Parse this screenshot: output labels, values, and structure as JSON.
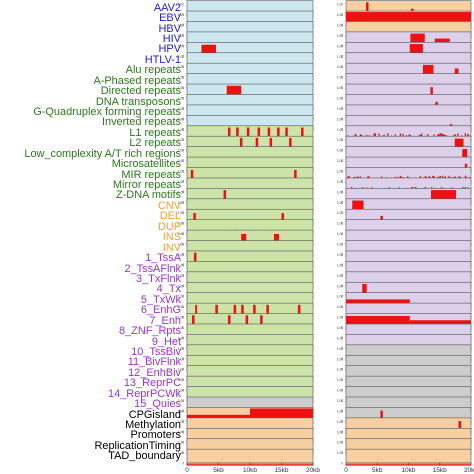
{
  "colors": {
    "virus_label": "#1f1fcc",
    "repeat_label": "#2a7a1a",
    "cnv_label": "#f0a030",
    "chromhmm_label": "#9a35c8",
    "misc_label": "#000000",
    "bar": "#ee1111",
    "bg_blue": "#cce7f0",
    "bg_purple": "#ddd0ea",
    "bg_green": "#cde4a8",
    "bg_gray": "#cdcdcd",
    "bg_peach": "#f8cfa0"
  },
  "chart_data": {
    "type": "bar",
    "layout": "two-column track panels, one row per annotation category",
    "x_axis": {
      "tick_labels": [
        "0",
        "5kb",
        "10kb",
        "15kb",
        "20kb"
      ],
      "range_kb": [
        0,
        20
      ]
    },
    "rows": [
      {
        "label": "AAV2",
        "group": "virus",
        "left_bg": "blue",
        "right_bg": "peach",
        "left_bars": [],
        "right_bars": [
          [
            0.3,
            0.7,
            0.12
          ],
          [
            3.2,
            3.6,
            0.95
          ],
          [
            10.4,
            10.8,
            0.5
          ],
          [
            14.8,
            15.2,
            0.12
          ]
        ]
      },
      {
        "label": "EBV",
        "group": "virus",
        "left_bg": "blue",
        "right_bg": "peach",
        "left_bars": [],
        "right_bars": [
          [
            0,
            20,
            1.0
          ]
        ]
      },
      {
        "label": "HBV",
        "group": "virus",
        "left_bg": "blue",
        "right_bg": "peach",
        "left_bars": [],
        "right_bars": []
      },
      {
        "label": "HIV",
        "group": "virus",
        "left_bg": "blue",
        "right_bg": "purple",
        "left_bars": [],
        "right_bars": [
          [
            10.3,
            12.6,
            0.95
          ],
          [
            14.2,
            16.6,
            0.6
          ],
          [
            18.2,
            18.6,
            0.25
          ]
        ]
      },
      {
        "label": "HPV",
        "group": "virus",
        "left_bg": "blue",
        "right_bg": "purple",
        "left_bars": [
          [
            2.3,
            4.6,
            0.9
          ]
        ],
        "right_bars": [
          [
            10.2,
            12.3,
            0.95
          ]
        ]
      },
      {
        "label": "HTLV-1",
        "group": "virus",
        "left_bg": "blue",
        "right_bg": "purple",
        "left_bars": [],
        "right_bars": []
      },
      {
        "label": "Alu repeats",
        "group": "repeat",
        "left_bg": "blue",
        "right_bg": "purple",
        "left_bars": [],
        "right_bars": [
          [
            12.3,
            14.0,
            0.95
          ],
          [
            17.4,
            18.0,
            0.7
          ]
        ]
      },
      {
        "label": "A-Phased repeats",
        "group": "repeat",
        "left_bg": "blue",
        "right_bg": "purple",
        "left_bars": [],
        "right_bars": []
      },
      {
        "label": "Directed repeats",
        "group": "repeat",
        "left_bg": "blue",
        "right_bg": "purple",
        "left_bars": [
          [
            6.3,
            8.6,
            0.95
          ]
        ],
        "right_bars": [
          [
            13.5,
            13.9,
            0.85
          ]
        ]
      },
      {
        "label": "DNA transposons",
        "group": "repeat",
        "left_bg": "blue",
        "right_bg": "purple",
        "left_bars": [],
        "right_bars": [
          [
            14.3,
            14.7,
            0.55
          ]
        ]
      },
      {
        "label": "G-Quadruplex forming repeats",
        "group": "repeat",
        "left_bg": "blue",
        "right_bg": "purple",
        "left_bars": [],
        "right_bars": []
      },
      {
        "label": "Inverted repeats",
        "group": "repeat",
        "left_bg": "blue",
        "right_bg": "purple",
        "left_bars": [],
        "right_bars": [
          [
            16.6,
            17.0,
            0.45
          ]
        ]
      },
      {
        "label": "L1 repeats",
        "group": "repeat",
        "left_bg": "green",
        "right_bg": "purple",
        "left_bars": [
          [
            6.5,
            6.9,
            0.95
          ],
          [
            7.8,
            8.2,
            0.95
          ],
          [
            9.5,
            9.9,
            0.95
          ],
          [
            11.2,
            11.6,
            0.95
          ],
          [
            12.8,
            13.2,
            0.95
          ],
          [
            14.3,
            14.7,
            0.95
          ],
          [
            15.6,
            16.0,
            0.95
          ],
          [
            18.1,
            18.5,
            0.95
          ]
        ],
        "right_bars": [
          [
            0,
            20,
            0.55,
            "noise"
          ]
        ]
      },
      {
        "label": "L2 repeats",
        "group": "repeat",
        "left_bg": "green",
        "right_bg": "purple",
        "left_bars": [
          [
            8.4,
            8.8,
            0.95
          ],
          [
            10.9,
            11.3,
            0.95
          ],
          [
            13.1,
            13.5,
            0.95
          ],
          [
            16.2,
            16.6,
            0.95
          ]
        ],
        "right_bars": [
          [
            17.4,
            18.8,
            0.9
          ]
        ]
      },
      {
        "label": "Low_complexity A/T rich regions",
        "group": "repeat",
        "left_bg": "green",
        "right_bg": "purple",
        "left_bars": [],
        "right_bars": [
          [
            18.6,
            19.4,
            0.9
          ]
        ]
      },
      {
        "label": "Microsatellites",
        "group": "repeat",
        "left_bg": "green",
        "right_bg": "purple",
        "left_bars": [],
        "right_bars": [
          [
            19.0,
            19.4,
            0.6
          ]
        ]
      },
      {
        "label": "MIR repeats",
        "group": "repeat",
        "left_bg": "green",
        "right_bg": "purple",
        "left_bars": [
          [
            0.6,
            1.0,
            0.9
          ],
          [
            17.0,
            17.4,
            0.9
          ]
        ],
        "right_bars": [
          [
            0,
            20,
            0.5,
            "noise"
          ]
        ]
      },
      {
        "label": "Mirror repeats",
        "group": "repeat",
        "left_bg": "green",
        "right_bg": "purple",
        "left_bars": [],
        "right_bars": [
          [
            0,
            20,
            0.45,
            "noise"
          ]
        ]
      },
      {
        "label": "Z-DNA motifs",
        "group": "repeat",
        "left_bg": "green",
        "right_bg": "purple",
        "left_bars": [
          [
            5.8,
            6.2,
            0.95
          ]
        ],
        "right_bars": [
          [
            13.6,
            17.6,
            0.95
          ]
        ]
      },
      {
        "label": "CNV",
        "group": "cnv",
        "left_bg": "green",
        "right_bg": "purple",
        "left_bars": [],
        "right_bars": [
          [
            1.0,
            2.8,
            0.95
          ]
        ]
      },
      {
        "label": "DEL",
        "group": "cnv",
        "left_bg": "green",
        "right_bg": "purple",
        "left_bars": [
          [
            1.0,
            1.4,
            0.8
          ],
          [
            15.0,
            15.4,
            0.8
          ]
        ],
        "right_bars": [
          [
            5.5,
            5.9,
            0.6
          ]
        ]
      },
      {
        "label": "DUP",
        "group": "cnv",
        "left_bg": "green",
        "right_bg": "purple",
        "left_bars": [
          [
            0,
            20,
            0.35,
            "noise"
          ]
        ],
        "right_bars": []
      },
      {
        "label": "INS",
        "group": "cnv",
        "left_bg": "green",
        "right_bg": "purple",
        "left_bars": [
          [
            8.6,
            9.4,
            0.8
          ],
          [
            13.8,
            14.6,
            0.8
          ],
          [
            0,
            20,
            0.25,
            "noise"
          ]
        ],
        "right_bars": []
      },
      {
        "label": "INV",
        "group": "cnv",
        "left_bg": "green",
        "right_bg": "purple",
        "left_bars": [],
        "right_bars": []
      },
      {
        "label": "1_TssA",
        "group": "chromhmm",
        "left_bg": "green",
        "right_bg": "purple",
        "left_bars": [
          [
            1.1,
            1.5,
            0.95
          ]
        ],
        "right_bars": []
      },
      {
        "label": "2_TssAFlnk",
        "group": "chromhmm",
        "left_bg": "green",
        "right_bg": "purple",
        "left_bars": [],
        "right_bars": []
      },
      {
        "label": "3_TxFlnk",
        "group": "chromhmm",
        "left_bg": "green",
        "right_bg": "purple",
        "left_bars": [],
        "right_bars": []
      },
      {
        "label": "4_Tx",
        "group": "chromhmm",
        "left_bg": "green",
        "right_bg": "purple",
        "left_bars": [],
        "right_bars": [
          [
            2.6,
            3.3,
            0.95
          ]
        ]
      },
      {
        "label": "5_TxWk",
        "group": "chromhmm",
        "left_bg": "green",
        "right_bg": "purple",
        "left_bars": [],
        "right_bars": [
          [
            0,
            10.2,
            0.6
          ]
        ]
      },
      {
        "label": "6_EnhG",
        "group": "chromhmm",
        "left_bg": "green",
        "right_bg": "purple",
        "left_bars": [
          [
            1.3,
            1.6,
            0.95
          ],
          [
            4.5,
            4.9,
            0.95
          ],
          [
            7.4,
            7.8,
            0.95
          ],
          [
            8.6,
            9.0,
            0.95
          ],
          [
            10.5,
            10.9,
            0.95
          ],
          [
            12.6,
            13.0,
            0.95
          ],
          [
            17.6,
            18.0,
            0.95
          ]
        ],
        "right_bars": []
      },
      {
        "label": "7_Enh",
        "group": "chromhmm",
        "left_bg": "green",
        "right_bg": "purple",
        "left_bars": [
          [
            0.8,
            1.2,
            0.95
          ],
          [
            6.5,
            6.9,
            0.95
          ],
          [
            9.3,
            9.7,
            0.95
          ],
          [
            11.6,
            12.0,
            0.95
          ]
        ],
        "right_bars": [
          [
            0,
            10.2,
            0.9
          ],
          [
            10.2,
            20,
            0.6
          ]
        ]
      },
      {
        "label": "8_ZNF_Rpts",
        "group": "chromhmm",
        "left_bg": "green",
        "right_bg": "purple",
        "left_bars": [],
        "right_bars": []
      },
      {
        "label": "9_Het",
        "group": "chromhmm",
        "left_bg": "green",
        "right_bg": "purple",
        "left_bars": [],
        "right_bars": []
      },
      {
        "label": "10_TssBiv",
        "group": "chromhmm",
        "left_bg": "green",
        "right_bg": "gray",
        "left_bars": [],
        "right_bars": []
      },
      {
        "label": "11_BivFlnk",
        "group": "chromhmm",
        "left_bg": "green",
        "right_bg": "gray",
        "left_bars": [],
        "right_bars": []
      },
      {
        "label": "12_EnhBiv",
        "group": "chromhmm",
        "left_bg": "green",
        "right_bg": "gray",
        "left_bars": [],
        "right_bars": []
      },
      {
        "label": "13_ReprPC",
        "group": "chromhmm",
        "left_bg": "green",
        "right_bg": "gray",
        "left_bars": [],
        "right_bars": []
      },
      {
        "label": "14_ReprPCWk",
        "group": "chromhmm",
        "left_bg": "green",
        "right_bg": "gray",
        "left_bars": [],
        "right_bars": []
      },
      {
        "label": "15_Quies",
        "group": "chromhmm",
        "left_bg": "gray",
        "right_bg": "gray",
        "left_bars": [],
        "right_bars": []
      },
      {
        "label": "CPGisland",
        "group": "misc",
        "left_bg": "peach",
        "right_bg": "gray",
        "left_bars": [
          [
            0,
            10,
            0.55
          ],
          [
            10,
            20,
            1.0
          ]
        ],
        "right_bars": [
          [
            5.5,
            5.9,
            0.85
          ]
        ]
      },
      {
        "label": "Methylation",
        "group": "misc",
        "left_bg": "peach",
        "right_bg": "peach",
        "left_bars": [],
        "right_bars": [
          [
            18.0,
            18.4,
            0.85
          ]
        ]
      },
      {
        "label": "Promoters",
        "group": "misc",
        "left_bg": "peach",
        "right_bg": "peach",
        "left_bars": [],
        "right_bars": []
      },
      {
        "label": "ReplicationTiming",
        "group": "misc",
        "left_bg": "peach",
        "right_bg": "peach",
        "left_bars": [],
        "right_bars": []
      },
      {
        "label": "TAD_boundary",
        "group": "misc",
        "left_bg": "peach",
        "right_bg": "peach",
        "left_bars": [],
        "right_bars": []
      }
    ]
  }
}
